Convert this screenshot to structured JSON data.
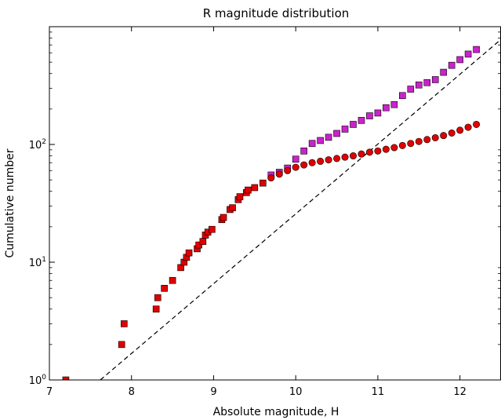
{
  "chart_data": {
    "type": "scatter",
    "title": "R magnitude distribution",
    "xlabel": "Absolute magnitude, H",
    "ylabel": "Cumulative number",
    "xlim": [
      7,
      12.5
    ],
    "ylim": [
      1,
      1000
    ],
    "yscale": "log",
    "grid": false,
    "x_ticks": [
      "7",
      "8",
      "9",
      "10",
      "11",
      "12"
    ],
    "y_ticks": [
      {
        "value": 1,
        "base": "10",
        "exp": "0"
      },
      {
        "value": 10,
        "base": "10",
        "exp": "1"
      },
      {
        "value": 100,
        "base": "10",
        "exp": "2"
      }
    ],
    "fit_line": {
      "style": "dashed",
      "color": "#000000",
      "points": [
        [
          7.62,
          1
        ],
        [
          12.5,
          780
        ]
      ]
    },
    "series": [
      {
        "marker": "square",
        "color": "#cc22cc",
        "points": [
          [
            9.7,
            55
          ],
          [
            9.8,
            58
          ],
          [
            9.9,
            63
          ],
          [
            10.0,
            75
          ],
          [
            10.1,
            88
          ],
          [
            10.2,
            102
          ],
          [
            10.3,
            108
          ],
          [
            10.4,
            115
          ],
          [
            10.5,
            124
          ],
          [
            10.6,
            135
          ],
          [
            10.7,
            148
          ],
          [
            10.8,
            160
          ],
          [
            10.9,
            175
          ],
          [
            11.0,
            185
          ],
          [
            11.1,
            205
          ],
          [
            11.2,
            218
          ],
          [
            11.3,
            260
          ],
          [
            11.4,
            295
          ],
          [
            11.5,
            320
          ],
          [
            11.6,
            335
          ],
          [
            11.7,
            355
          ],
          [
            11.8,
            410
          ],
          [
            11.9,
            470
          ],
          [
            12.0,
            525
          ],
          [
            12.1,
            585
          ],
          [
            12.2,
            640
          ]
        ]
      },
      {
        "marker": "circle",
        "color": "#e00000",
        "points": [
          [
            9.7,
            52
          ],
          [
            9.8,
            56
          ],
          [
            9.9,
            60
          ],
          [
            10.0,
            64
          ],
          [
            10.1,
            67
          ],
          [
            10.2,
            70
          ],
          [
            10.3,
            72
          ],
          [
            10.4,
            74
          ],
          [
            10.5,
            76
          ],
          [
            10.6,
            78
          ],
          [
            10.7,
            80
          ],
          [
            10.8,
            83
          ],
          [
            10.9,
            86
          ],
          [
            11.0,
            88
          ],
          [
            11.1,
            91
          ],
          [
            11.2,
            94
          ],
          [
            11.3,
            98
          ],
          [
            11.4,
            102
          ],
          [
            11.5,
            106
          ],
          [
            11.6,
            110
          ],
          [
            11.7,
            114
          ],
          [
            11.8,
            119
          ],
          [
            11.9,
            125
          ],
          [
            12.0,
            132
          ],
          [
            12.1,
            140
          ],
          [
            12.2,
            148
          ]
        ]
      },
      {
        "marker": "square",
        "color": "#e00000",
        "points": [
          [
            7.2,
            1
          ],
          [
            7.88,
            2
          ],
          [
            7.91,
            3
          ],
          [
            8.3,
            4
          ],
          [
            8.32,
            5
          ],
          [
            8.4,
            6
          ],
          [
            8.5,
            7
          ],
          [
            8.6,
            9
          ],
          [
            8.64,
            10
          ],
          [
            8.67,
            11
          ],
          [
            8.7,
            12
          ],
          [
            8.8,
            13
          ],
          [
            8.82,
            14
          ],
          [
            8.87,
            15
          ],
          [
            8.9,
            17
          ],
          [
            8.93,
            18
          ],
          [
            8.98,
            19
          ],
          [
            9.1,
            23
          ],
          [
            9.12,
            24
          ],
          [
            9.2,
            28
          ],
          [
            9.23,
            29
          ],
          [
            9.3,
            34
          ],
          [
            9.32,
            36
          ],
          [
            9.4,
            39
          ],
          [
            9.42,
            41
          ],
          [
            9.5,
            43
          ],
          [
            9.6,
            47
          ]
        ]
      }
    ]
  }
}
